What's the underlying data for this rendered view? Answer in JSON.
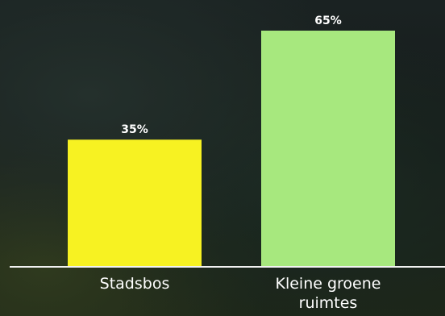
{
  "chart_data": {
    "type": "bar",
    "categories": [
      "Stadsbos",
      "Kleine groene ruimtes"
    ],
    "category_lines": [
      [
        "Stadsbos"
      ],
      [
        "Kleine groene",
        "ruimtes"
      ]
    ],
    "values": [
      35,
      65
    ],
    "value_labels": [
      "35%",
      "65%"
    ],
    "colors": [
      "#f7f222",
      "#a7e87e"
    ],
    "ylim": [
      0,
      65
    ],
    "grid": false,
    "title": "",
    "xlabel": "",
    "ylabel": ""
  }
}
